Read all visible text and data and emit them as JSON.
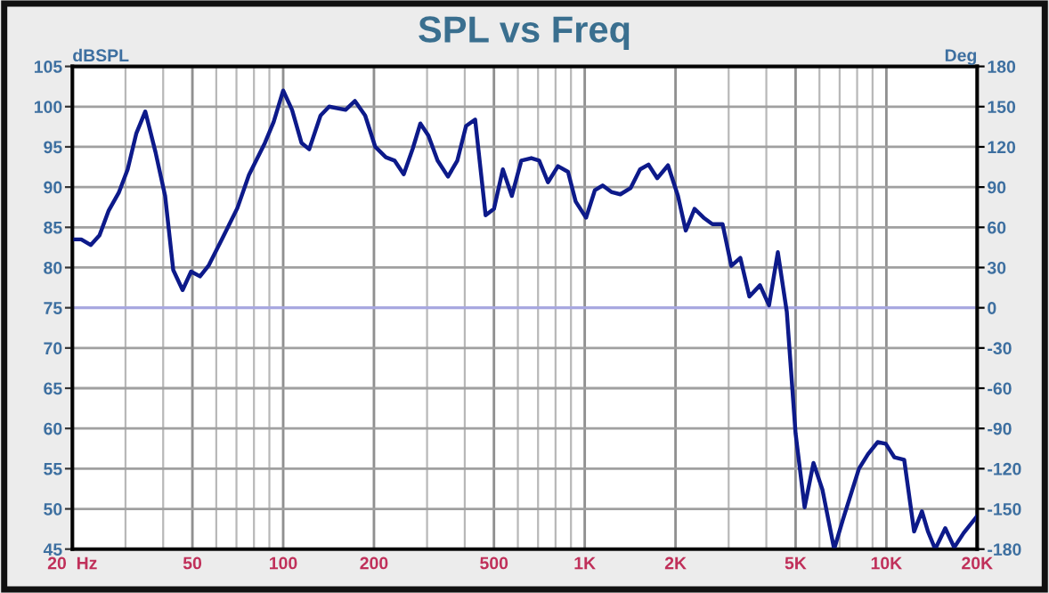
{
  "chart_data": {
    "type": "line",
    "title": "SPL vs Freq",
    "ylabel": "dBSPL",
    "y2label": "Deg",
    "log": "x",
    "grid": true,
    "legend": false,
    "xlim": [
      20,
      20000
    ],
    "xticks": [
      {
        "value": 20,
        "label": "20  Hz"
      },
      50,
      100,
      200,
      500,
      {
        "value": 1000,
        "label": "1K"
      },
      {
        "value": 2000,
        "label": "2K"
      },
      {
        "value": 5000,
        "label": "5K"
      },
      {
        "value": 10000,
        "label": "10K"
      },
      {
        "value": 20000,
        "label": "20K"
      }
    ],
    "ylim": [
      45,
      105
    ],
    "yticks": [
      45,
      50,
      55,
      60,
      65,
      70,
      75,
      80,
      85,
      90,
      95,
      100,
      105
    ],
    "y2lim": [
      -180,
      180
    ],
    "y2ticks": [
      -180,
      -150,
      -120,
      -90,
      -60,
      -30,
      0,
      30,
      60,
      90,
      120,
      150,
      180
    ],
    "ref_lines": [
      {
        "axis": "y",
        "value": 75,
        "color": "#a8a8e0"
      }
    ],
    "x": [
      20,
      21.4,
      23,
      24.6,
      26.4,
      28.5,
      30.5,
      32.6,
      34.9,
      37.7,
      40.6,
      43.2,
      46.4,
      49.5,
      53,
      56.7,
      63,
      70.5,
      77,
      87,
      93,
      100,
      107,
      115,
      122,
      133,
      142,
      161,
      173,
      187,
      202,
      219,
      234,
      251,
      269,
      285,
      303,
      325,
      352,
      378,
      404,
      433,
      469,
      500,
      535,
      573,
      616,
      665,
      706,
      755,
      815,
      880,
      933,
      1010,
      1080,
      1146,
      1225,
      1312,
      1420,
      1525,
      1626,
      1740,
      1888,
      2037,
      2162,
      2312,
      2477,
      2650,
      2864,
      3061,
      3280,
      3514,
      3811,
      4083,
      4367,
      4676,
      5000,
      5357,
      5733,
      6138,
      6714,
      7180,
      8112,
      8690,
      9354,
      9954,
      10640,
      11460,
      12360,
      13120,
      13740,
      14520,
      15680,
      16790,
      18040,
      20000
    ],
    "series": [
      {
        "color": "#0d1a8a",
        "values": [
          83.5,
          83.5,
          82.8,
          84.0,
          87.1,
          89.3,
          92.2,
          96.7,
          99.4,
          94.4,
          88.9,
          79.7,
          77.2,
          79.5,
          78.9,
          80.3,
          83.7,
          87.4,
          91.5,
          95.5,
          98.1,
          102.0,
          99.6,
          95.5,
          94.7,
          98.9,
          100.0,
          99.6,
          100.7,
          98.9,
          95.0,
          93.7,
          93.3,
          91.6,
          94.8,
          97.9,
          96.4,
          93.3,
          91.3,
          93.3,
          97.6,
          98.4,
          86.5,
          87.3,
          92.2,
          88.9,
          93.3,
          93.6,
          93.3,
          90.6,
          92.6,
          91.9,
          88.2,
          86.2,
          89.6,
          90.2,
          89.4,
          89.1,
          89.9,
          92.2,
          92.8,
          91.1,
          92.7,
          88.9,
          84.6,
          87.3,
          86.2,
          85.4,
          85.4,
          80.2,
          81.2,
          76.4,
          77.8,
          75.3,
          81.9,
          74.5,
          59.4,
          50.2,
          55.7,
          52.4,
          45.0,
          48.7,
          55.0,
          56.8,
          58.3,
          58.1,
          56.4,
          56.1,
          47.2,
          49.7,
          47.2,
          45.0,
          47.6,
          45.2,
          47.0,
          49.1
        ]
      }
    ]
  }
}
